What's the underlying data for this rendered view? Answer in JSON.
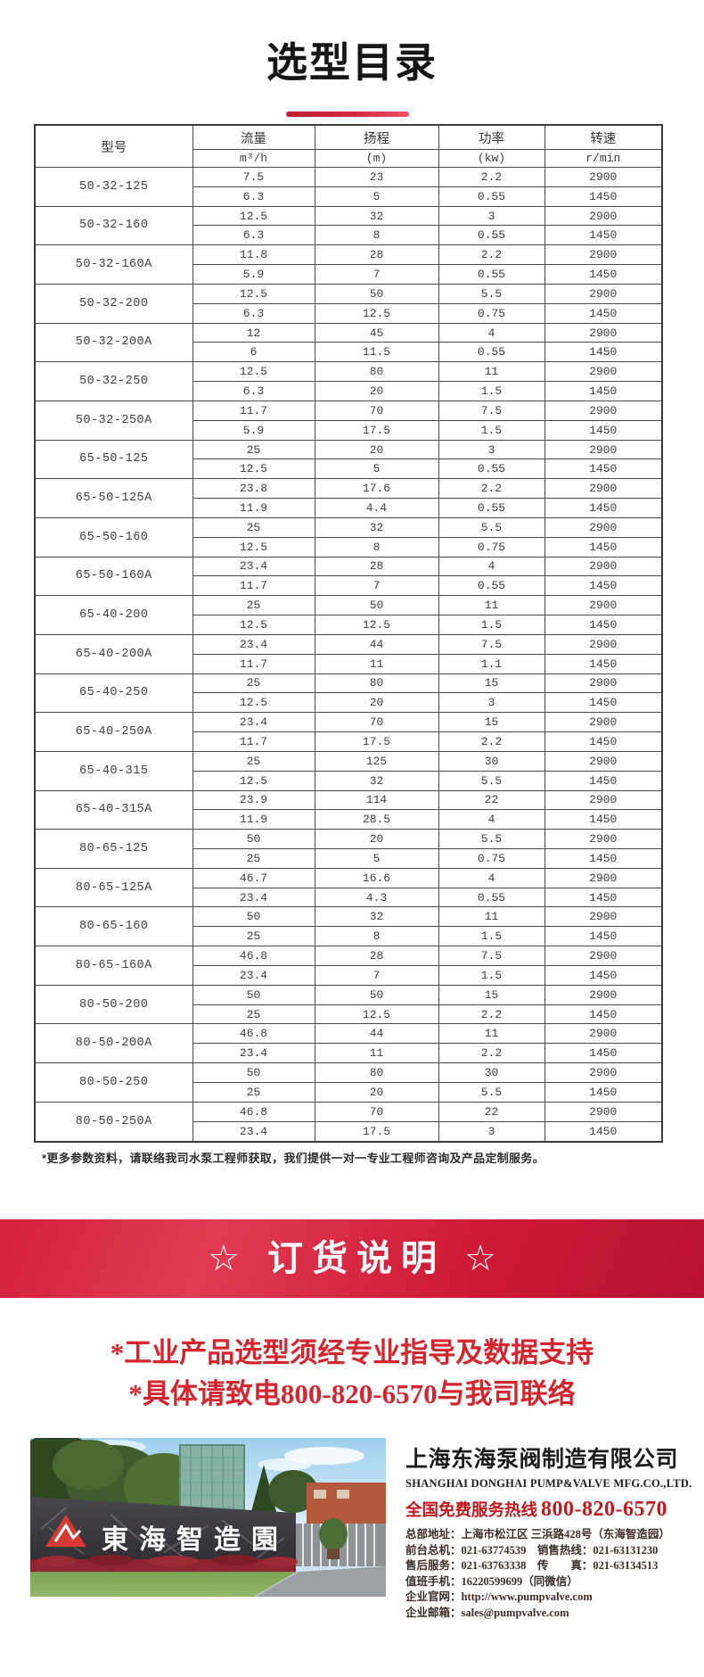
{
  "page": {
    "title": "选型目录"
  },
  "table": {
    "headers": {
      "model": "型号",
      "flow": "流量",
      "flow_unit": "m³/h",
      "head": "扬程",
      "head_unit": "(m)",
      "power": "功率",
      "power_unit": "(kw)",
      "speed": "转速",
      "speed_unit": "r/min"
    },
    "groups": [
      {
        "model": "50-32-125",
        "r1": [
          "7.5",
          "23",
          "2.2",
          "2900"
        ],
        "r2": [
          "6.3",
          "5",
          "0.55",
          "1450"
        ]
      },
      {
        "model": "50-32-160",
        "r1": [
          "12.5",
          "32",
          "3",
          "2900"
        ],
        "r2": [
          "6.3",
          "8",
          "0.55",
          "1450"
        ]
      },
      {
        "model": "50-32-160A",
        "r1": [
          "11.8",
          "28",
          "2.2",
          "2900"
        ],
        "r2": [
          "5.9",
          "7",
          "0.55",
          "1450"
        ]
      },
      {
        "model": "50-32-200",
        "r1": [
          "12.5",
          "50",
          "5.5",
          "2900"
        ],
        "r2": [
          "6.3",
          "12.5",
          "0.75",
          "1450"
        ]
      },
      {
        "model": "50-32-200A",
        "r1": [
          "12",
          "45",
          "4",
          "2900"
        ],
        "r2": [
          "6",
          "11.5",
          "0.55",
          "1450"
        ]
      },
      {
        "model": "50-32-250",
        "r1": [
          "12.5",
          "80",
          "11",
          "2900"
        ],
        "r2": [
          "6.3",
          "20",
          "1.5",
          "1450"
        ]
      },
      {
        "model": "50-32-250A",
        "r1": [
          "11.7",
          "70",
          "7.5",
          "2900"
        ],
        "r2": [
          "5.9",
          "17.5",
          "1.5",
          "1450"
        ]
      },
      {
        "model": "65-50-125",
        "r1": [
          "25",
          "20",
          "3",
          "2900"
        ],
        "r2": [
          "12.5",
          "5",
          "0.55",
          "1450"
        ]
      },
      {
        "model": "65-50-125A",
        "r1": [
          "23.8",
          "17.6",
          "2.2",
          "2900"
        ],
        "r2": [
          "11.9",
          "4.4",
          "0.55",
          "1450"
        ]
      },
      {
        "model": "65-50-160",
        "r1": [
          "25",
          "32",
          "5.5",
          "2900"
        ],
        "r2": [
          "12.5",
          "8",
          "0.75",
          "1450"
        ]
      },
      {
        "model": "65-50-160A",
        "r1": [
          "23.4",
          "28",
          "4",
          "2900"
        ],
        "r2": [
          "11.7",
          "7",
          "0.55",
          "1450"
        ]
      },
      {
        "model": "65-40-200",
        "r1": [
          "25",
          "50",
          "11",
          "2900"
        ],
        "r2": [
          "12.5",
          "12.5",
          "1.5",
          "1450"
        ]
      },
      {
        "model": "65-40-200A",
        "r1": [
          "23.4",
          "44",
          "7.5",
          "2900"
        ],
        "r2": [
          "11.7",
          "11",
          "1.1",
          "1450"
        ]
      },
      {
        "model": "65-40-250",
        "r1": [
          "25",
          "80",
          "15",
          "2900"
        ],
        "r2": [
          "12.5",
          "20",
          "3",
          "1450"
        ]
      },
      {
        "model": "65-40-250A",
        "r1": [
          "23.4",
          "70",
          "15",
          "2900"
        ],
        "r2": [
          "11.7",
          "17.5",
          "2.2",
          "1450"
        ]
      },
      {
        "model": "65-40-315",
        "r1": [
          "25",
          "125",
          "30",
          "2900"
        ],
        "r2": [
          "12.5",
          "32",
          "5.5",
          "1450"
        ]
      },
      {
        "model": "65-40-315A",
        "r1": [
          "23.9",
          "114",
          "22",
          "2900"
        ],
        "r2": [
          "11.9",
          "28.5",
          "4",
          "1450"
        ]
      },
      {
        "model": "80-65-125",
        "r1": [
          "50",
          "20",
          "5.5",
          "2900"
        ],
        "r2": [
          "25",
          "5",
          "0.75",
          "1450"
        ]
      },
      {
        "model": "80-65-125A",
        "r1": [
          "46.7",
          "16.6",
          "4",
          "2900"
        ],
        "r2": [
          "23.4",
          "4.3",
          "0.55",
          "1450"
        ]
      },
      {
        "model": "80-65-160",
        "r1": [
          "50",
          "32",
          "11",
          "2900"
        ],
        "r2": [
          "25",
          "8",
          "1.5",
          "1450"
        ]
      },
      {
        "model": "80-65-160A",
        "r1": [
          "46.8",
          "28",
          "7.5",
          "2900"
        ],
        "r2": [
          "23.4",
          "7",
          "1.5",
          "1450"
        ]
      },
      {
        "model": "80-50-200",
        "r1": [
          "50",
          "50",
          "15",
          "2900"
        ],
        "r2": [
          "25",
          "12.5",
          "2.2",
          "1450"
        ]
      },
      {
        "model": "80-50-200A",
        "r1": [
          "46.8",
          "44",
          "11",
          "2900"
        ],
        "r2": [
          "23.4",
          "11",
          "2.2",
          "1450"
        ]
      },
      {
        "model": "80-50-250",
        "r1": [
          "50",
          "80",
          "30",
          "2900"
        ],
        "r2": [
          "25",
          "20",
          "5.5",
          "1450"
        ]
      },
      {
        "model": "80-50-250A",
        "r1": [
          "46.8",
          "70",
          "22",
          "2900"
        ],
        "r2": [
          "23.4",
          "17.5",
          "3",
          "1450"
        ]
      }
    ]
  },
  "note": "*更多参数资料，请联络我司水泵工程师获取，我们提供一对一专业工程师咨询及产品定制服务。",
  "banner": {
    "text": "☆ 订货说明 ☆"
  },
  "notices": [
    "*工业产品选型须经专业指导及数据支持",
    "*具体请致电800-820-6570与我司联络"
  ],
  "footer": {
    "photo_sign": "東海智造園",
    "company_cn": "上海东海泵阀制造有限公司",
    "company_en": "SHANGHAI DONGHAI PUMP&VALVE MFG.CO.,LTD.",
    "hotline_label": "全国免费服务热线",
    "hotline_number": "800-820-6570",
    "contacts": [
      {
        "label": "总部地址：",
        "value": "上海市松江区 三浜路428号（东海智造园）"
      },
      {
        "label": "前台总机：",
        "value": "021-63774539",
        "label2": "销售热线：",
        "value2": "021-63131230"
      },
      {
        "label": "售后服务：",
        "value": "021-63763338",
        "label2": "传　　真：",
        "value2": "021-63134513"
      },
      {
        "label": "值班手机：",
        "value": "16220599699（同微信）"
      },
      {
        "label": "企业官网：",
        "value": "http://www.pumpvalve.com"
      },
      {
        "label": "企业邮箱：",
        "value": "sales@pumpvalve.com"
      }
    ]
  },
  "colors": {
    "banner_red_light": "#e23a52",
    "banner_red_dark": "#b81230",
    "notice_red": "#d4262e",
    "hotline_red": "#c0181c",
    "title_rule_red_left": "#c01e35",
    "title_rule_red_right": "#ef5063",
    "logo_red": "#d63a30"
  }
}
